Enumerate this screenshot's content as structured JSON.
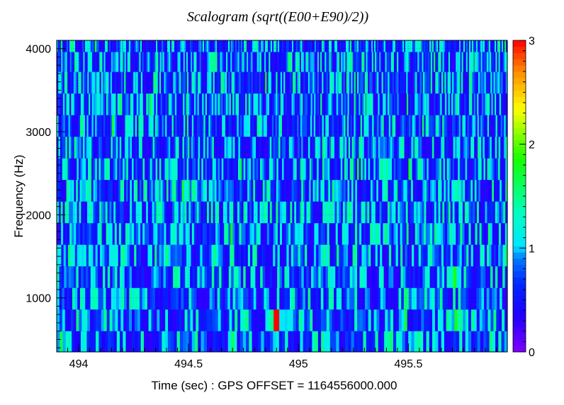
{
  "chart_data": {
    "type": "heatmap",
    "title": "Scalogram (sqrt((E00+E90)/2))",
    "xlabel": "Time (sec) : GPS OFFSET = 1164556000.000",
    "ylabel": "Frequency (Hz)",
    "xlim": [
      493.9,
      495.95
    ],
    "ylim": [
      350,
      4100
    ],
    "x_ticks": [
      494,
      494.5,
      495,
      495.5
    ],
    "x_tick_labels": [
      "494",
      "494.5",
      "495",
      "495.5"
    ],
    "y_ticks": [
      1000,
      2000,
      3000,
      4000
    ],
    "y_tick_labels": [
      "1000",
      "2000",
      "3000",
      "4000"
    ],
    "colorbar": {
      "range": [
        0,
        3
      ],
      "ticks": [
        0,
        1,
        2,
        3
      ],
      "tick_labels": [
        "0",
        "1",
        "2",
        "3"
      ],
      "colormap": "rainbow (violet-blue-cyan-green-yellow-red)"
    },
    "frequency_band_edges_hz": [
      350,
      600,
      860,
      1120,
      1380,
      1640,
      1900,
      2160,
      2420,
      2680,
      2940,
      3200,
      3460,
      3720,
      3960,
      4100
    ],
    "typical_value": 0.7,
    "value_range_observed": [
      0.3,
      3.0
    ],
    "peak": {
      "time_sec": 494.9,
      "frequency_hz": 700,
      "value": 3.0
    },
    "grid": true,
    "colors": {
      "low": "#7f00ff",
      "mid_low": "#0000ff",
      "mid": "#00ffff",
      "mid_high": "#00ff00",
      "high_yellow": "#ffff00",
      "max": "#ff0000"
    }
  }
}
